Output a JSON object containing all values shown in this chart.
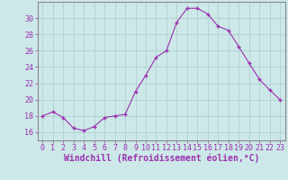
{
  "x": [
    0,
    1,
    2,
    3,
    4,
    5,
    6,
    7,
    8,
    9,
    10,
    11,
    12,
    13,
    14,
    15,
    16,
    17,
    18,
    19,
    20,
    21,
    22,
    23
  ],
  "y": [
    18,
    18.5,
    17.8,
    16.5,
    16.2,
    16.7,
    17.8,
    18,
    18.2,
    21,
    23,
    25.2,
    26,
    29.5,
    31.2,
    31.2,
    30.5,
    29,
    28.5,
    26.5,
    24.5,
    22.5,
    21.2,
    20
  ],
  "line_color": "#9b30b0",
  "marker": "+",
  "marker_size": 3,
  "marker_linewidth": 1.0,
  "background_color": "#cce8e8",
  "grid_color": "#aacccc",
  "xlabel": "Windchill (Refroidissement éolien,°C)",
  "yticks": [
    16,
    18,
    20,
    22,
    24,
    26,
    28,
    30
  ],
  "ylim": [
    15.0,
    32.0
  ],
  "xlim": [
    -0.5,
    23.5
  ],
  "xlabel_fontsize": 7,
  "tick_fontsize": 6,
  "axis_label_color": "#9b30b0",
  "tick_color": "#9b30b0",
  "spine_color": "#888888"
}
